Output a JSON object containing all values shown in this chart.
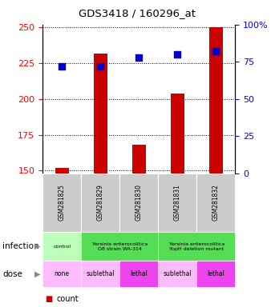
{
  "title": "GDS3418 / 160296_at",
  "samples": [
    "GSM281825",
    "GSM281829",
    "GSM281830",
    "GSM281831",
    "GSM281832"
  ],
  "counts": [
    152,
    232,
    168,
    204,
    250
  ],
  "percentile_ranks": [
    72,
    72,
    78,
    80,
    82
  ],
  "ylim_left": [
    148,
    252
  ],
  "ylim_right": [
    0,
    100
  ],
  "yticks_left": [
    150,
    175,
    200,
    225,
    250
  ],
  "yticks_right": [
    0,
    25,
    50,
    75,
    100
  ],
  "bar_color": "#cc0000",
  "dot_color": "#0000cc",
  "bar_width": 0.35,
  "dot_size": 30,
  "background_color": "#ffffff",
  "inf_data": [
    [
      0,
      1,
      "control",
      "#bbffbb"
    ],
    [
      1,
      3,
      "Yersinia enterocolitica\nO8 strain WA-314",
      "#55dd55"
    ],
    [
      3,
      5,
      "Yersinia enterocolitica\nYopH deletion mutant",
      "#55dd55"
    ]
  ],
  "dose_data": [
    [
      0,
      1,
      "none",
      "#ffbbff"
    ],
    [
      1,
      2,
      "sublethal",
      "#ffbbff"
    ],
    [
      2,
      3,
      "lethal",
      "#ee44ee"
    ],
    [
      3,
      4,
      "sublethal",
      "#ffbbff"
    ],
    [
      4,
      5,
      "lethal",
      "#ee44ee"
    ]
  ]
}
